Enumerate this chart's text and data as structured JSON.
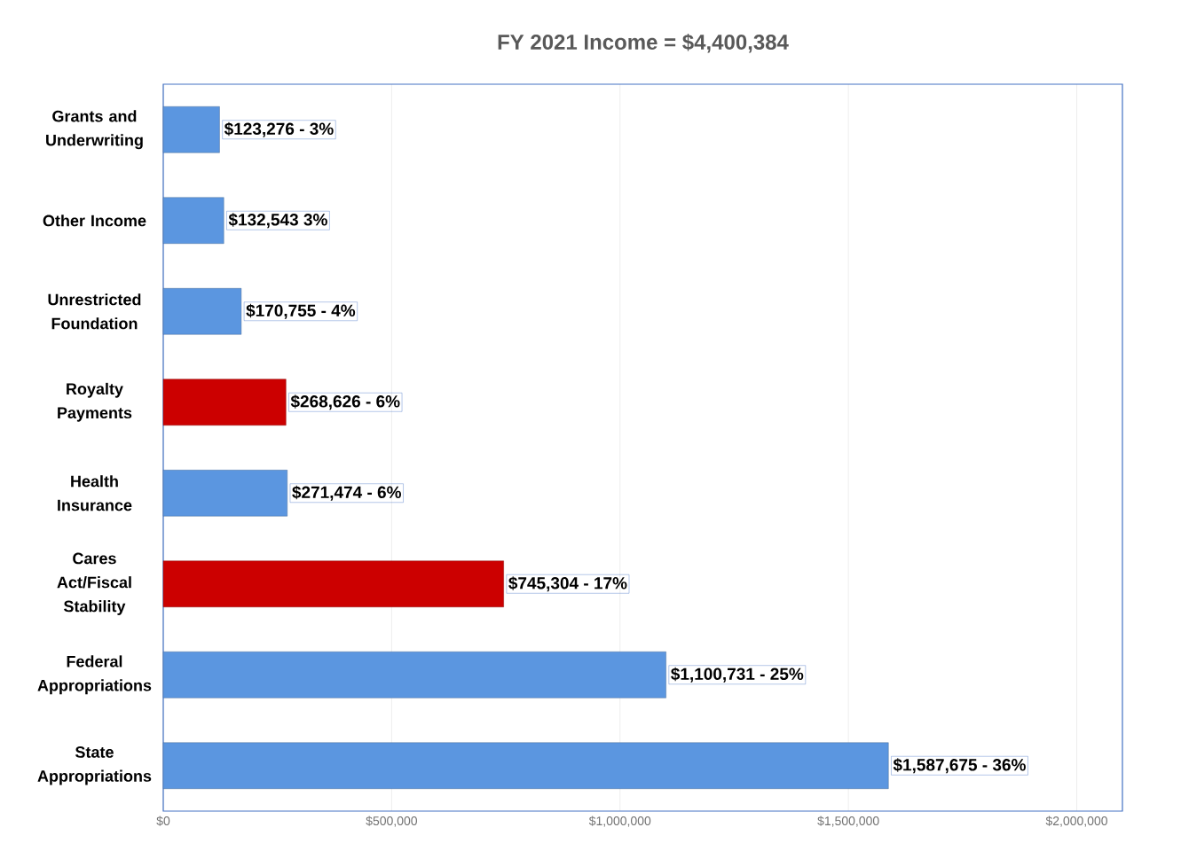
{
  "chart_data": {
    "type": "bar",
    "orientation": "horizontal",
    "title": "FY 2021 Income = $4,400,384",
    "categories": [
      "Grants and Underwriting",
      "Other Income",
      "Unrestricted Foundation",
      "Royalty Payments",
      "Health Insurance",
      "Cares Act/Fiscal Stability",
      "Federal Appropriations",
      "State Appropriations"
    ],
    "values": [
      123276,
      132543,
      170755,
      268626,
      271474,
      745304,
      1100731,
      1587675
    ],
    "colors": [
      "#5b96e0",
      "#5b96e0",
      "#5b96e0",
      "#cc0000",
      "#5b96e0",
      "#cc0000",
      "#5b96e0",
      "#5b96e0"
    ],
    "value_labels": [
      "$123,276 - 3%",
      "$132,543 3%",
      "$170,755 - 4%",
      "$268,626 - 6%",
      "$271,474 - 6%",
      "$745,304  - 17%",
      "$1,100,731 - 25%",
      "$1,587,675 - 36%"
    ],
    "xlim": [
      0,
      2100000
    ],
    "xticks": [
      {
        "value": 0,
        "label": "$0"
      },
      {
        "value": 500000,
        "label": "$500,000"
      },
      {
        "value": 1000000,
        "label": "$1,000,000"
      },
      {
        "value": 1500000,
        "label": "$1,500,000"
      },
      {
        "value": 2000000,
        "label": "$2,000,000"
      }
    ],
    "grid": "x"
  }
}
